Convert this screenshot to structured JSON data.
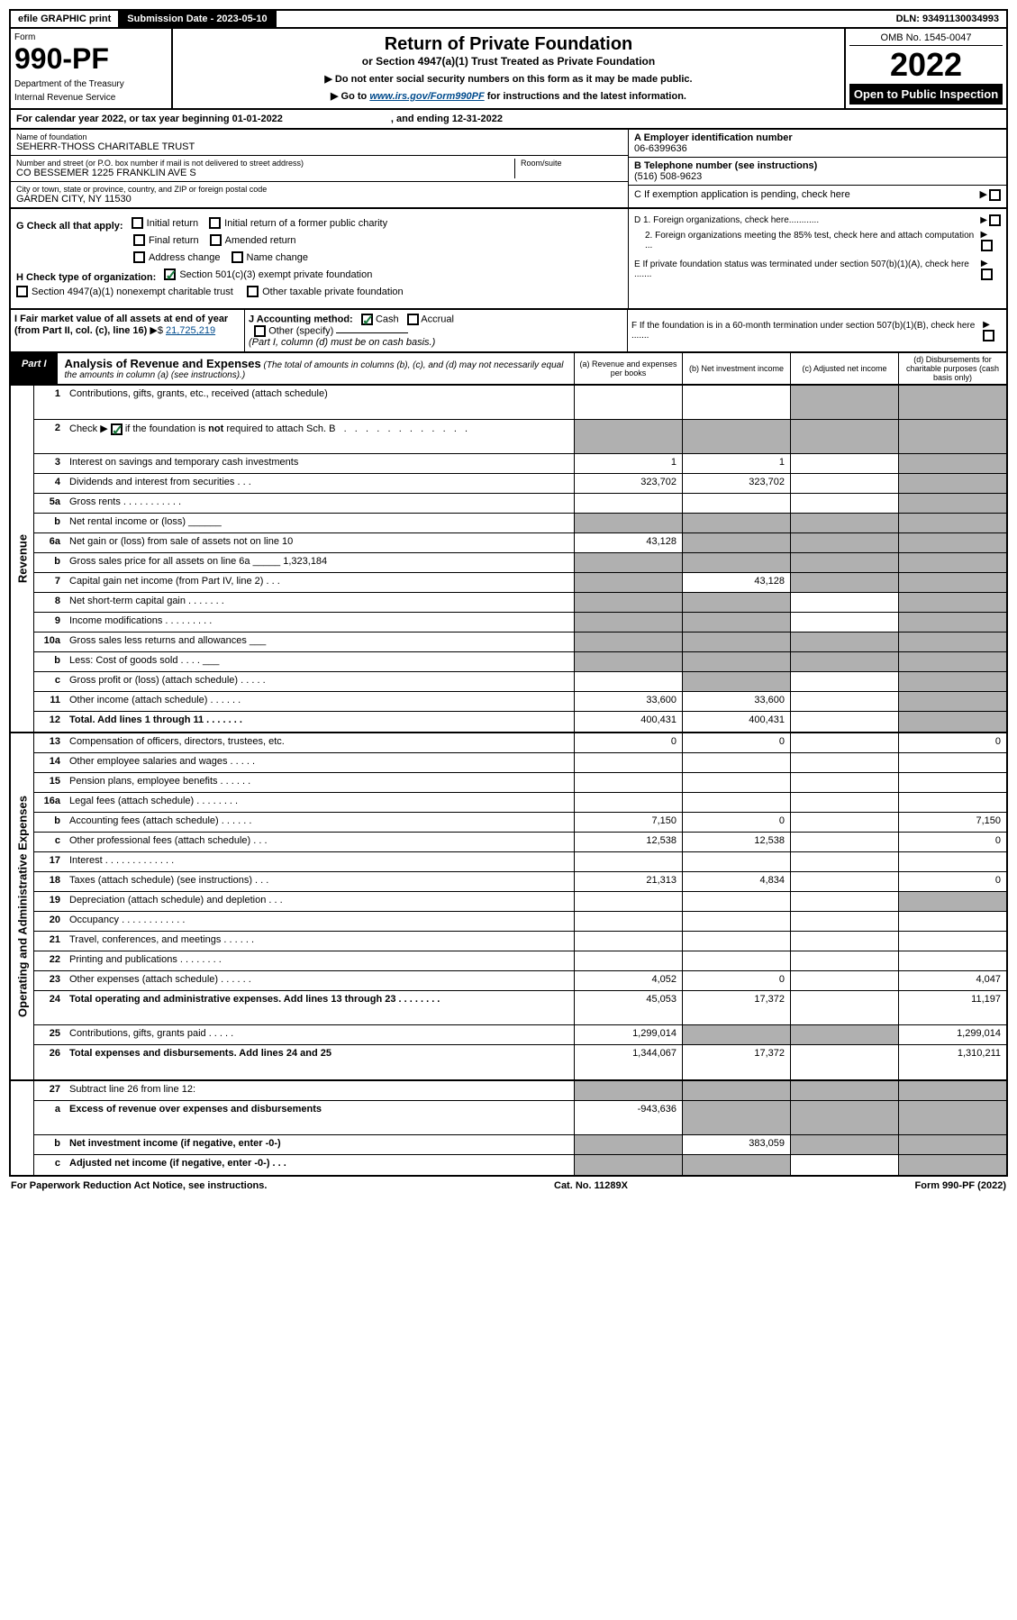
{
  "topbar": {
    "efile": "efile GRAPHIC print",
    "submission": "Submission Date - 2023-05-10",
    "dln": "DLN: 93491130034993"
  },
  "header": {
    "form_word": "Form",
    "form_number": "990-PF",
    "dept": "Department of the Treasury",
    "irs": "Internal Revenue Service",
    "title": "Return of Private Foundation",
    "subtitle": "or Section 4947(a)(1) Trust Treated as Private Foundation",
    "note1": "▶ Do not enter social security numbers on this form as it may be made public.",
    "note2_pre": "▶ Go to ",
    "note2_link": "www.irs.gov/Form990PF",
    "note2_post": " for instructions and the latest information.",
    "omb": "OMB No. 1545-0047",
    "year": "2022",
    "open": "Open to Public Inspection"
  },
  "cal_year": {
    "text": "For calendar year 2022, or tax year beginning 01-01-2022",
    "end": ", and ending 12-31-2022"
  },
  "entity": {
    "name_label": "Name of foundation",
    "name": "SEHERR-THOSS CHARITABLE TRUST",
    "addr_label": "Number and street (or P.O. box number if mail is not delivered to street address)",
    "addr": "CO BESSEMER 1225 FRANKLIN AVE S",
    "room_label": "Room/suite",
    "room": "",
    "city_label": "City or town, state or province, country, and ZIP or foreign postal code",
    "city": "GARDEN CITY, NY  11530",
    "a_label": "A Employer identification number",
    "a_val": "06-6399636",
    "b_label": "B Telephone number (see instructions)",
    "b_val": "(516) 508-9623",
    "c_label": "C If exemption application is pending, check here",
    "d1_label": "D 1. Foreign organizations, check here............",
    "d2_label": "2. Foreign organizations meeting the 85% test, check here and attach computation ...",
    "e_label": "E  If private foundation status was terminated under section 507(b)(1)(A), check here .......",
    "f_label": "F  If the foundation is in a 60-month termination under section 507(b)(1)(B), check here .......",
    "g_label": "G Check all that apply:",
    "g_opts": [
      "Initial return",
      "Initial return of a former public charity",
      "Final return",
      "Amended return",
      "Address change",
      "Name change"
    ],
    "h_label": "H Check type of organization:",
    "h_opt1": "Section 501(c)(3) exempt private foundation",
    "h_opt2": "Section 4947(a)(1) nonexempt charitable trust",
    "h_opt3": "Other taxable private foundation",
    "i_label": "I Fair market value of all assets at end of year (from Part II, col. (c), line 16)",
    "i_val": "21,725,219",
    "j_label": "J Accounting method:",
    "j_cash": "Cash",
    "j_accrual": "Accrual",
    "j_other": "Other (specify)",
    "j_note": "(Part I, column (d) must be on cash basis.)"
  },
  "part1": {
    "label": "Part I",
    "title": "Analysis of Revenue and Expenses",
    "title_note": "(The total of amounts in columns (b), (c), and (d) may not necessarily equal the amounts in column (a) (see instructions).)",
    "col_a": "(a)  Revenue and expenses per books",
    "col_b": "(b)  Net investment income",
    "col_c": "(c)  Adjusted net income",
    "col_d": "(d)  Disbursements for charitable purposes (cash basis only)"
  },
  "sections": {
    "revenue": "Revenue",
    "expenses": "Operating and Administrative Expenses"
  },
  "rows": [
    {
      "n": "1",
      "d": "Contributions, gifts, grants, etc., received (attach schedule)",
      "a": "",
      "b": "",
      "c": "grey",
      "dd": "grey",
      "tall": true
    },
    {
      "n": "2",
      "d": "Check ▶ [✓] if the foundation is not required to attach Sch. B",
      "a": "grey",
      "b": "grey",
      "c": "grey",
      "dd": "grey",
      "tall": true,
      "nocheck": true
    },
    {
      "n": "3",
      "d": "Interest on savings and temporary cash investments",
      "a": "1",
      "b": "1",
      "c": "",
      "dd": "grey"
    },
    {
      "n": "4",
      "d": "Dividends and interest from securities   .   .   .",
      "a": "323,702",
      "b": "323,702",
      "c": "",
      "dd": "grey"
    },
    {
      "n": "5a",
      "d": "Gross rents   .   .   .   .   .   .   .   .   .   .   .",
      "a": "",
      "b": "",
      "c": "",
      "dd": "grey"
    },
    {
      "n": "b",
      "d": "Net rental income or (loss)  ______",
      "a": "grey",
      "b": "grey",
      "c": "grey",
      "dd": "grey"
    },
    {
      "n": "6a",
      "d": "Net gain or (loss) from sale of assets not on line 10",
      "a": "43,128",
      "b": "grey",
      "c": "grey",
      "dd": "grey"
    },
    {
      "n": "b",
      "d": "Gross sales price for all assets on line 6a _____ 1,323,184",
      "a": "grey",
      "b": "grey",
      "c": "grey",
      "dd": "grey"
    },
    {
      "n": "7",
      "d": "Capital gain net income (from Part IV, line 2)   .   .   .",
      "a": "grey",
      "b": "43,128",
      "c": "grey",
      "dd": "grey"
    },
    {
      "n": "8",
      "d": "Net short-term capital gain  .   .   .   .   .   .   .",
      "a": "grey",
      "b": "grey",
      "c": "",
      "dd": "grey"
    },
    {
      "n": "9",
      "d": "Income modifications  .   .   .   .   .   .   .   .   .",
      "a": "grey",
      "b": "grey",
      "c": "",
      "dd": "grey"
    },
    {
      "n": "10a",
      "d": "Gross sales less returns and allowances  ___",
      "a": "grey",
      "b": "grey",
      "c": "grey",
      "dd": "grey"
    },
    {
      "n": "b",
      "d": "Less: Cost of goods sold   .   .   .   .   ___",
      "a": "grey",
      "b": "grey",
      "c": "grey",
      "dd": "grey"
    },
    {
      "n": "c",
      "d": "Gross profit or (loss) (attach schedule)   .   .   .   .   .",
      "a": "",
      "b": "grey",
      "c": "",
      "dd": "grey"
    },
    {
      "n": "11",
      "d": "Other income (attach schedule)   .   .   .   .   .   .",
      "a": "33,600",
      "b": "33,600",
      "c": "",
      "dd": "grey"
    },
    {
      "n": "12",
      "d": "Total. Add lines 1 through 11   .   .   .   .   .   .   .",
      "a": "400,431",
      "b": "400,431",
      "c": "",
      "dd": "grey",
      "bold": true
    }
  ],
  "exp_rows": [
    {
      "n": "13",
      "d": "Compensation of officers, directors, trustees, etc.",
      "a": "0",
      "b": "0",
      "c": "",
      "dd": "0"
    },
    {
      "n": "14",
      "d": "Other employee salaries and wages   .   .   .   .   .",
      "a": "",
      "b": "",
      "c": "",
      "dd": ""
    },
    {
      "n": "15",
      "d": "Pension plans, employee benefits  .   .   .   .   .   .",
      "a": "",
      "b": "",
      "c": "",
      "dd": ""
    },
    {
      "n": "16a",
      "d": "Legal fees (attach schedule)  .   .   .   .   .   .   .   .",
      "a": "",
      "b": "",
      "c": "",
      "dd": ""
    },
    {
      "n": "b",
      "d": "Accounting fees (attach schedule)  .   .   .   .   .   .",
      "a": "7,150",
      "b": "0",
      "c": "",
      "dd": "7,150"
    },
    {
      "n": "c",
      "d": "Other professional fees (attach schedule)   .   .   .",
      "a": "12,538",
      "b": "12,538",
      "c": "",
      "dd": "0"
    },
    {
      "n": "17",
      "d": "Interest  .   .   .   .   .   .   .   .   .   .   .   .   .",
      "a": "",
      "b": "",
      "c": "",
      "dd": ""
    },
    {
      "n": "18",
      "d": "Taxes (attach schedule) (see instructions)   .   .   .",
      "a": "21,313",
      "b": "4,834",
      "c": "",
      "dd": "0"
    },
    {
      "n": "19",
      "d": "Depreciation (attach schedule) and depletion   .   .   .",
      "a": "",
      "b": "",
      "c": "",
      "dd": "grey"
    },
    {
      "n": "20",
      "d": "Occupancy  .   .   .   .   .   .   .   .   .   .   .   .",
      "a": "",
      "b": "",
      "c": "",
      "dd": ""
    },
    {
      "n": "21",
      "d": "Travel, conferences, and meetings  .   .   .   .   .   .",
      "a": "",
      "b": "",
      "c": "",
      "dd": ""
    },
    {
      "n": "22",
      "d": "Printing and publications  .   .   .   .   .   .   .   .",
      "a": "",
      "b": "",
      "c": "",
      "dd": ""
    },
    {
      "n": "23",
      "d": "Other expenses (attach schedule)  .   .   .   .   .   .",
      "a": "4,052",
      "b": "0",
      "c": "",
      "dd": "4,047"
    },
    {
      "n": "24",
      "d": "Total operating and administrative expenses. Add lines 13 through 23   .   .   .   .   .   .   .   .",
      "a": "45,053",
      "b": "17,372",
      "c": "",
      "dd": "11,197",
      "bold": true,
      "tall": true
    },
    {
      "n": "25",
      "d": "Contributions, gifts, grants paid   .   .   .   .   .",
      "a": "1,299,014",
      "b": "grey",
      "c": "grey",
      "dd": "1,299,014"
    },
    {
      "n": "26",
      "d": "Total expenses and disbursements. Add lines 24 and 25",
      "a": "1,344,067",
      "b": "17,372",
      "c": "",
      "dd": "1,310,211",
      "bold": true,
      "tall": true
    }
  ],
  "bottom_rows": [
    {
      "n": "27",
      "d": "Subtract line 26 from line 12:",
      "a": "grey",
      "b": "grey",
      "c": "grey",
      "dd": "grey"
    },
    {
      "n": "a",
      "d": "Excess of revenue over expenses and disbursements",
      "a": "-943,636",
      "b": "grey",
      "c": "grey",
      "dd": "grey",
      "bold": true,
      "tall": true
    },
    {
      "n": "b",
      "d": "Net investment income (if negative, enter -0-)",
      "a": "grey",
      "b": "383,059",
      "c": "grey",
      "dd": "grey",
      "bold": true
    },
    {
      "n": "c",
      "d": "Adjusted net income (if negative, enter -0-)   .   .   .",
      "a": "grey",
      "b": "grey",
      "c": "",
      "dd": "grey",
      "bold": true
    }
  ],
  "footer": {
    "left": "For Paperwork Reduction Act Notice, see instructions.",
    "mid": "Cat. No. 11289X",
    "right": "Form 990-PF (2022)"
  }
}
